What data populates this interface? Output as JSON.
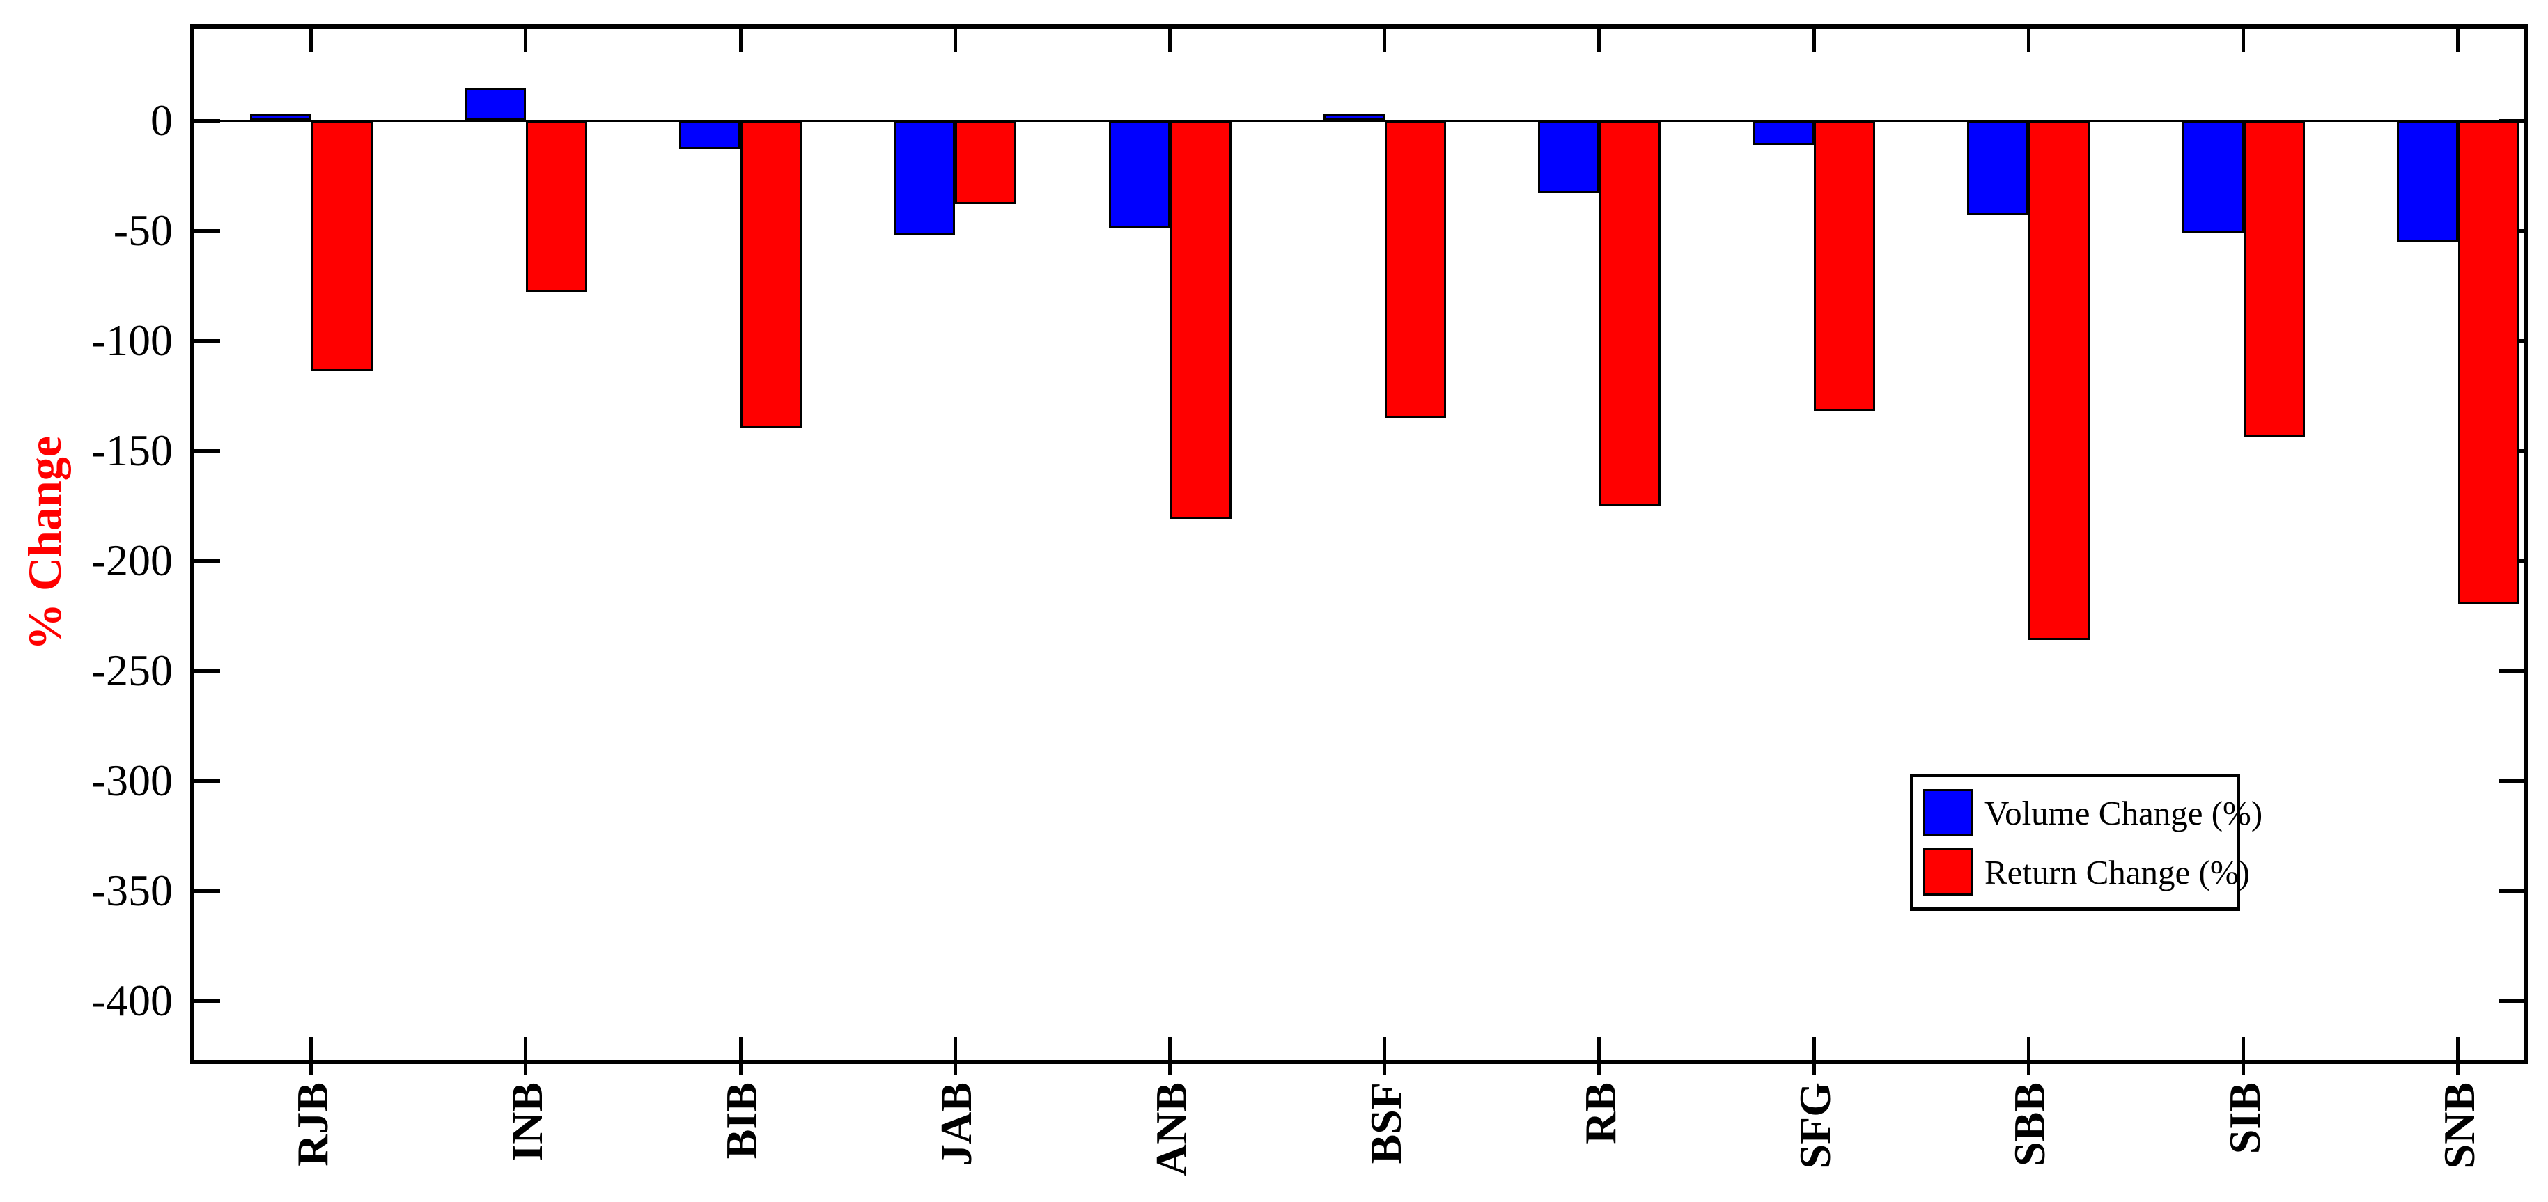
{
  "chart_data": {
    "type": "bar",
    "title": "",
    "xlabel": "",
    "ylabel": "% Change",
    "ylabel_color": "#FF0000",
    "categories": [
      "RJB",
      "INB",
      "BIB",
      "JAB",
      "ANB",
      "BSF",
      "RB",
      "SFG",
      "SBB",
      "SIB",
      "SNB"
    ],
    "series": [
      {
        "name": "Volume Change (%)",
        "color": "#0000FF",
        "values": [
          3,
          15,
          -13,
          -52,
          -49,
          3,
          -33,
          -11,
          -43,
          -51,
          -55
        ]
      },
      {
        "name": "Return Change (%)",
        "color": "#FF0000",
        "values": [
          -114,
          -78,
          -140,
          -38,
          -181,
          -135,
          -175,
          -132,
          -236,
          -144,
          -220
        ]
      }
    ],
    "yticks": [
      0,
      -50,
      -100,
      -150,
      -200,
      -250,
      -300,
      -350,
      -400
    ],
    "ylim": [
      -429,
      44
    ],
    "grid": false,
    "legend_position": "lower-right-inside",
    "bar_edge_color": "#000000",
    "axis_color": "#000000",
    "tick_label_color": "#000000"
  }
}
